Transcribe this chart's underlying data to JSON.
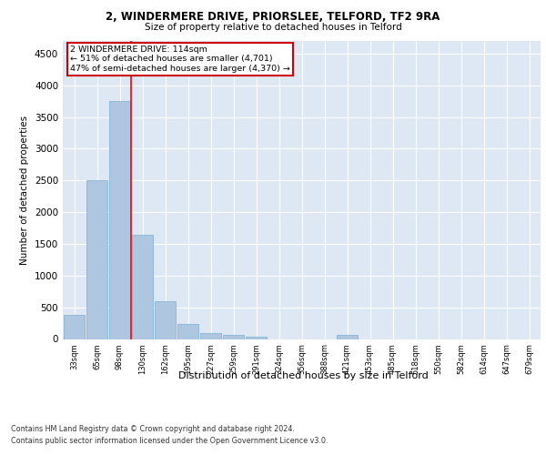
{
  "title": "2, WINDERMERE DRIVE, PRIORSLEE, TELFORD, TF2 9RA",
  "subtitle": "Size of property relative to detached houses in Telford",
  "xlabel": "Distribution of detached houses by size in Telford",
  "ylabel": "Number of detached properties",
  "categories": [
    "33sqm",
    "65sqm",
    "98sqm",
    "130sqm",
    "162sqm",
    "195sqm",
    "227sqm",
    "259sqm",
    "291sqm",
    "324sqm",
    "356sqm",
    "388sqm",
    "421sqm",
    "453sqm",
    "485sqm",
    "518sqm",
    "550sqm",
    "582sqm",
    "614sqm",
    "647sqm",
    "679sqm"
  ],
  "values": [
    375,
    2500,
    3750,
    1650,
    600,
    240,
    100,
    60,
    40,
    0,
    0,
    0,
    60,
    0,
    0,
    0,
    0,
    0,
    0,
    0,
    0
  ],
  "bar_color": "#aec6e0",
  "bar_edge_color": "#7aafd4",
  "annotation_line1": "2 WINDERMERE DRIVE: 114sqm",
  "annotation_line2": "← 51% of detached houses are smaller (4,701)",
  "annotation_line3": "47% of semi-detached houses are larger (4,370) →",
  "annotation_box_color": "#ffffff",
  "annotation_box_edge": "#cc0000",
  "ylim": [
    0,
    4700
  ],
  "yticks": [
    0,
    500,
    1000,
    1500,
    2000,
    2500,
    3000,
    3500,
    4000,
    4500
  ],
  "background_color": "#dde8f4",
  "footer_line1": "Contains HM Land Registry data © Crown copyright and database right 2024.",
  "footer_line2": "Contains public sector information licensed under the Open Government Licence v3.0."
}
